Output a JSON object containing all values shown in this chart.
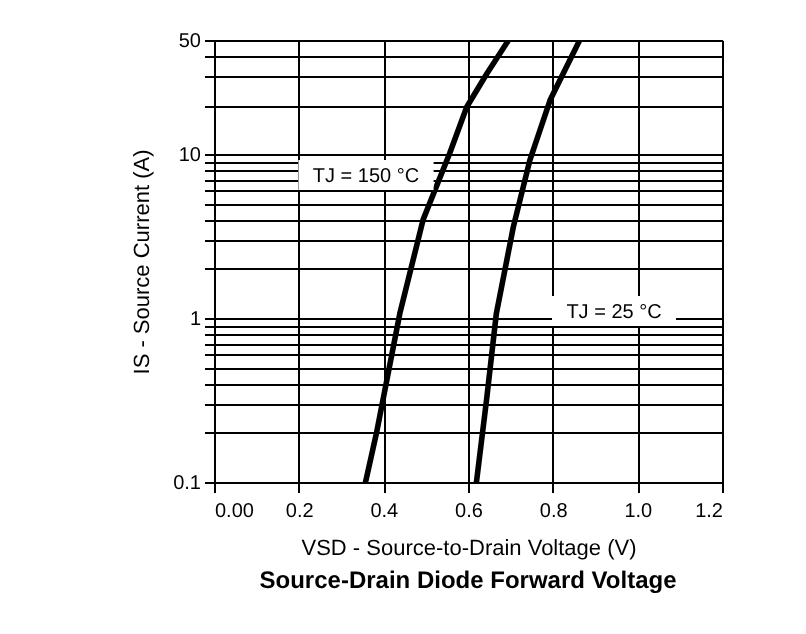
{
  "chart_data": {
    "type": "line",
    "title": "Source-Drain Diode Forward Voltage",
    "xlabel": "VSD  -  Source-to-Drain Voltage (V)",
    "ylabel": "IS  -  Source Current (A)",
    "log": "y",
    "grid": true,
    "marker": "none",
    "line_style": "solid",
    "xlim": [
      0,
      1.2
    ],
    "ylim": [
      0.1,
      50
    ],
    "xticks": [
      {
        "value": 0,
        "label": "0.00"
      },
      0.2,
      0.4,
      0.6,
      0.8,
      {
        "value": 1,
        "label": "1.0"
      },
      1.2
    ],
    "yticks": [
      0.1,
      {
        "value": 0.2,
        "label": null
      },
      {
        "value": 0.3,
        "label": null
      },
      {
        "value": 0.4,
        "label": null
      },
      {
        "value": 0.5,
        "label": null
      },
      {
        "value": 0.6,
        "label": null
      },
      {
        "value": 0.7,
        "label": null
      },
      {
        "value": 0.8,
        "label": null
      },
      {
        "value": 0.9,
        "label": null
      },
      1,
      {
        "value": 2,
        "label": null
      },
      {
        "value": 3,
        "label": null
      },
      {
        "value": 4,
        "label": null
      },
      {
        "value": 5,
        "label": null
      },
      {
        "value": 6,
        "label": null
      },
      {
        "value": 7,
        "label": null
      },
      {
        "value": 8,
        "label": null
      },
      {
        "value": 9,
        "label": null
      },
      10,
      {
        "value": 20,
        "label": null
      },
      {
        "value": 30,
        "label": null
      },
      {
        "value": 40,
        "label": null
      },
      50
    ],
    "series": [
      {
        "color": "#000000",
        "x": [
          0.358,
          0.384,
          0.439,
          0.494,
          0.557,
          0.597,
          0.644,
          0.696
        ],
        "values": [
          0.1,
          0.2,
          1.07,
          4.0,
          10.2,
          19.5,
          31,
          50
        ]
      },
      {
        "color": "#000000",
        "x": [
          0.62,
          0.644,
          0.667,
          0.707,
          0.746,
          0.794,
          0.864
        ],
        "values": [
          0.1,
          0.32,
          1.07,
          3.6,
          9.2,
          21.5,
          50
        ]
      }
    ],
    "annotations": [
      "TJ = 150 °C",
      "TJ = 25 °C"
    ]
  }
}
